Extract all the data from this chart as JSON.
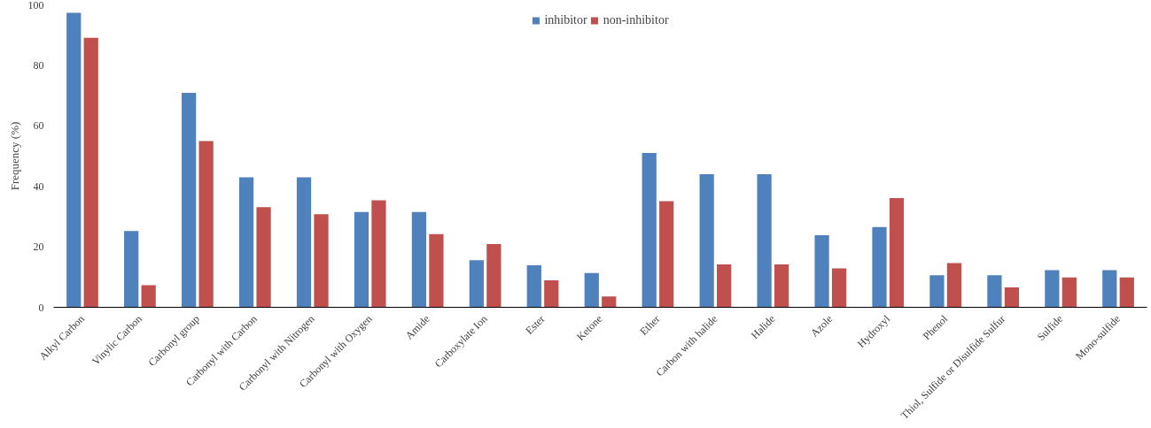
{
  "chart_data": {
    "type": "bar",
    "ylabel": "Frequency (%)",
    "categories": [
      "Alkyl Carbon",
      "Vinylic Carbon",
      "Carbonyl group",
      "Carbonyl with Carbon",
      "Carbonyl with Nitrogen",
      "Carbonyl with Oxygen",
      "Amide",
      "Carboxylate Ion",
      "Ester",
      "Ketone",
      "Ether",
      "Carbon with halide",
      "Halide",
      "Azole",
      "Hydroxyl",
      "Phenol",
      "Thiol, Sulfide or Disulfide Sulfur",
      "Sulfide",
      "Mono-sulfide"
    ],
    "series": [
      {
        "name": "inhibitor",
        "color": "#4f81bd",
        "values": [
          97.4,
          25.2,
          70.9,
          43.0,
          43.0,
          31.5,
          31.5,
          15.6,
          13.9,
          11.3,
          51.0,
          44.0,
          44.0,
          23.8,
          26.5,
          10.6,
          10.6,
          12.3,
          12.3
        ]
      },
      {
        "name": "non-inhibitor",
        "color": "#c0504d",
        "values": [
          89.1,
          7.3,
          55.0,
          33.1,
          30.8,
          35.4,
          24.2,
          20.9,
          8.9,
          3.6,
          35.1,
          14.2,
          14.2,
          12.9,
          36.1,
          14.6,
          6.6,
          9.9,
          9.9
        ]
      }
    ],
    "ylim": [
      0,
      100
    ],
    "yticks": [
      0,
      20,
      40,
      60,
      80,
      100
    ],
    "grid": false,
    "legend": "top"
  }
}
